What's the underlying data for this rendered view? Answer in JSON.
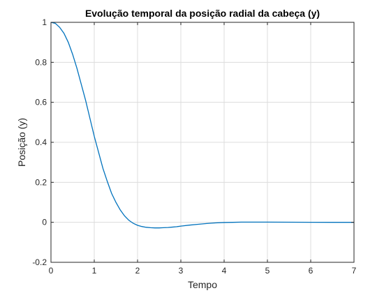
{
  "chart_data": {
    "type": "line",
    "title": "Evolução temporal da posição radial da cabeça (y)",
    "xlabel": "Tempo",
    "ylabel": "Posição (y)",
    "xlim": [
      0,
      7
    ],
    "ylim": [
      -0.2,
      1
    ],
    "xticks": [
      0,
      1,
      2,
      3,
      4,
      5,
      6,
      7
    ],
    "yticks": [
      -0.2,
      0,
      0.2,
      0.4,
      0.6,
      0.8,
      1
    ],
    "grid": true,
    "series": [
      {
        "color": "#0072bd",
        "x": [
          0,
          0.1,
          0.2,
          0.3,
          0.4,
          0.5,
          0.6,
          0.7,
          0.8,
          0.9,
          1.0,
          1.1,
          1.2,
          1.3,
          1.4,
          1.5,
          1.6,
          1.7,
          1.8,
          1.9,
          2.0,
          2.1,
          2.2,
          2.3,
          2.4,
          2.5,
          2.6,
          2.7,
          2.8,
          2.9,
          3.0,
          3.2,
          3.4,
          3.6,
          3.8,
          4.0,
          4.2,
          4.4,
          4.6,
          4.8,
          5.0,
          5.5,
          6.0,
          6.5,
          7.0
        ],
        "y": [
          1.0,
          0.995,
          0.975,
          0.945,
          0.9,
          0.84,
          0.77,
          0.69,
          0.61,
          0.52,
          0.43,
          0.35,
          0.27,
          0.205,
          0.145,
          0.1,
          0.062,
          0.032,
          0.01,
          -0.005,
          -0.015,
          -0.021,
          -0.025,
          -0.027,
          -0.028,
          -0.028,
          -0.027,
          -0.026,
          -0.024,
          -0.022,
          -0.019,
          -0.014,
          -0.01,
          -0.006,
          -0.003,
          -0.001,
          0.0,
          0.001,
          0.001,
          0.001,
          0.001,
          0.0005,
          0.0002,
          0.0,
          0.0
        ]
      }
    ]
  }
}
